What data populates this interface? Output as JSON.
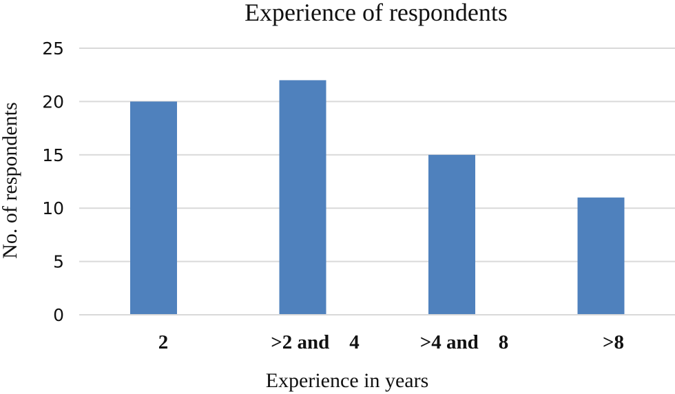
{
  "chart_data": {
    "type": "bar",
    "title": "Experience of respondents",
    "xlabel": "Experience in years",
    "ylabel": "No. of respondents",
    "categories": [
      "2",
      ">2 and    4",
      ">4 and    8",
      ">8"
    ],
    "values": [
      20,
      22,
      15,
      11
    ],
    "ylim": [
      0,
      25
    ],
    "yticks": [
      0,
      5,
      10,
      15,
      20,
      25
    ],
    "grid": true,
    "legend": "none",
    "bar_color": "#4f81bd",
    "grid_color": "#d9d9d9"
  }
}
